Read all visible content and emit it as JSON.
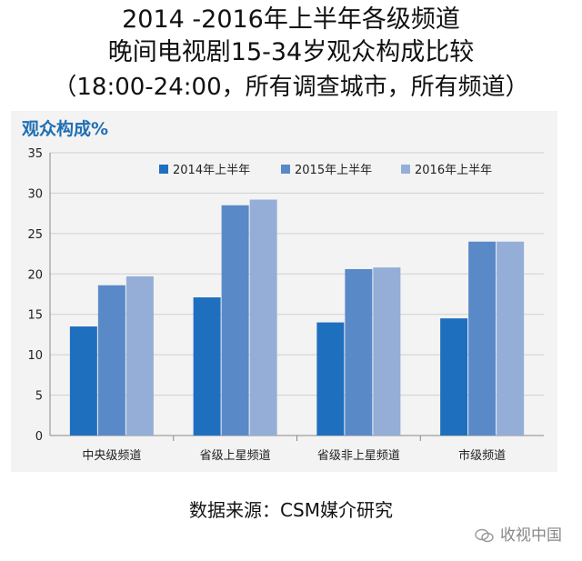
{
  "title": {
    "line1": "2014 -2016年上半年各级频道",
    "line2": "晚间电视剧15-34岁观众构成比较",
    "line3": "（18:00-24:00，所有调查城市，所有频道）"
  },
  "source": "数据来源：CSM媒介研究",
  "watermark": "收视中国",
  "colors": {
    "s2014": "#1f6fbf",
    "s2015": "#5a89c8",
    "s2016": "#94aed8"
  },
  "chart_data": {
    "type": "bar",
    "ylabel": "观众构成%",
    "ylim": [
      0,
      35
    ],
    "yticks": [
      0,
      5,
      10,
      15,
      20,
      25,
      30,
      35
    ],
    "grid": true,
    "legend": "top",
    "categories": [
      "中央级频道",
      "省级上星频道",
      "省级非上星频道",
      "市级频道"
    ],
    "series": [
      {
        "name": "2014年上半年",
        "values": [
          13.5,
          17.1,
          14.0,
          14.5
        ]
      },
      {
        "name": "2015年上半年",
        "values": [
          18.6,
          28.5,
          20.6,
          24.0
        ]
      },
      {
        "name": "2016年上半年",
        "values": [
          19.7,
          29.2,
          20.8,
          24.0
        ]
      }
    ]
  }
}
